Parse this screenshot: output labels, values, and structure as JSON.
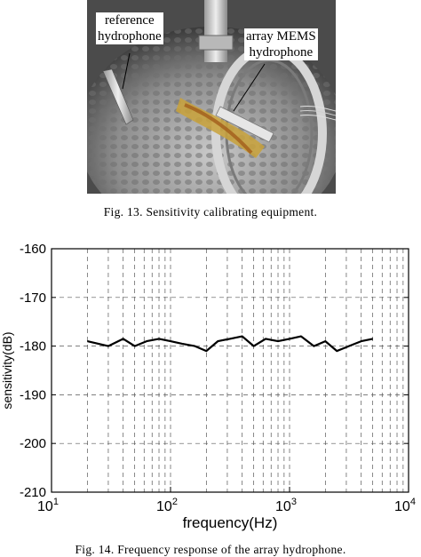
{
  "figure13": {
    "caption": "Fig. 13.    Sensitivity calibrating equipment.",
    "labels": {
      "reference_line1": "reference",
      "reference_line2": "hydrophone",
      "array_line1": "array MEMS",
      "array_line2": "hydrophone"
    }
  },
  "figure14": {
    "caption": "Fig. 14.    Frequency response of the array hydrophone."
  },
  "chart_data": {
    "type": "line",
    "xlabel": "frequency(Hz)",
    "ylabel": "sensitivity(dB)",
    "x_scale": "log",
    "xlim": [
      10,
      10000
    ],
    "ylim": [
      -210,
      -160
    ],
    "y_ticks": [
      -160,
      -170,
      -180,
      -190,
      -200,
      -210
    ],
    "x_tick_labels": [
      {
        "base": "10",
        "exp": "1"
      },
      {
        "base": "10",
        "exp": "2"
      },
      {
        "base": "10",
        "exp": "3"
      },
      {
        "base": "10",
        "exp": "4"
      }
    ],
    "grid": "dashed, major and minor",
    "series": [
      {
        "color": "#000000",
        "x": [
          20,
          30,
          40,
          50,
          63,
          80,
          100,
          125,
          160,
          200,
          250,
          315,
          400,
          500,
          630,
          800,
          1000,
          1250,
          1600,
          2000,
          2500,
          3150,
          4000,
          5000
        ],
        "y": [
          -179,
          -180,
          -178.5,
          -180,
          -179,
          -178.5,
          -179,
          -179.5,
          -180,
          -181,
          -179,
          -178.5,
          -178,
          -180,
          -178.5,
          -179,
          -178.5,
          -178,
          -180,
          -179,
          -181,
          -180,
          -179,
          -178.5
        ]
      }
    ]
  }
}
